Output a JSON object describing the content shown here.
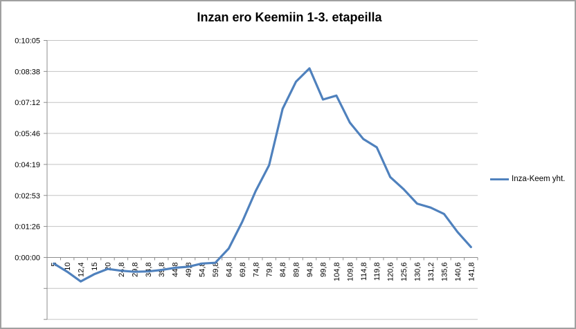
{
  "window": {
    "background": "#FFFFFF",
    "border_color": "#A0A0A0"
  },
  "chart_data": {
    "type": "line",
    "title": "Inzan ero Keemiin 1-3. etapeilla",
    "legend": {
      "position": "right",
      "entries": [
        {
          "label": "Inza-Keem yht.",
          "color": "#4F81BD"
        }
      ]
    },
    "x_axis": {
      "categories": [
        "5",
        "10",
        "12,4",
        "15",
        "20",
        "24,8",
        "29,8",
        "34,8",
        "39,8",
        "44,8",
        "49,8",
        "54,8",
        "59,8",
        "64,8",
        "69,8",
        "74,8",
        "79,8",
        "84,8",
        "89,8",
        "94,8",
        "99,8",
        "104,8",
        "109,8",
        "114,8",
        "119,8",
        "120,6",
        "125,6",
        "130,6",
        "131,2",
        "135,6",
        "140,6",
        "141,8"
      ],
      "label_rotation_deg": -90
    },
    "y_axis": {
      "format": "h:mm:ss",
      "tick_labels": [
        "0:10:05",
        "0:08:38",
        "0:07:12",
        "0:05:46",
        "0:04:19",
        "0:02:53",
        "0:01:26",
        "0:00:00"
      ],
      "max_seconds": 604.8,
      "min_seconds": -172.8,
      "major_unit_seconds": 86.4,
      "unlabeled_gridlines_below_zero": 2
    },
    "series": [
      {
        "name": "Inza-Keem yht.",
        "color": "#4F81BD",
        "values_seconds": [
          -17,
          -40,
          -67,
          -47,
          -32,
          -37,
          -40,
          -39,
          -35,
          -29,
          -26,
          -17,
          -15,
          25,
          99,
          185,
          257,
          414,
          490,
          527,
          440,
          451,
          376,
          330,
          307,
          224,
          190,
          150,
          139,
          121,
          71,
          29
        ]
      }
    ],
    "grid": "horizontal",
    "colors": {
      "gridline": "#C3C3C3",
      "axis": "#8C8C8C",
      "text": "#000000",
      "accent": "#4F81BD"
    }
  }
}
